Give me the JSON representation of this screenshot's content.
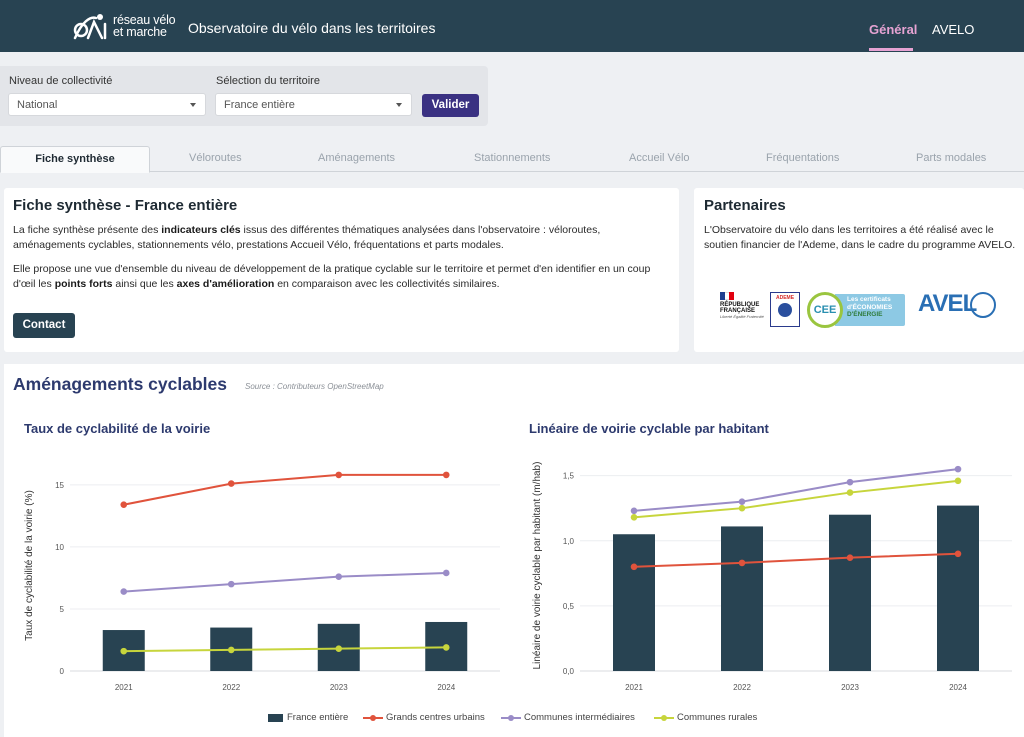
{
  "header": {
    "logo_line1": "réseau vélo",
    "logo_line2": "et marche",
    "app_title": "Observatoire du vélo dans les territoires",
    "nav": [
      "Général",
      "AVELO"
    ]
  },
  "filters": {
    "level_label": "Niveau de collectivité",
    "level_value": "National",
    "territory_label": "Sélection du territoire",
    "territory_value": "France entière",
    "submit_label": "Valider"
  },
  "tabs": [
    "Fiche synthèse",
    "Véloroutes",
    "Aménagements",
    "Stationnements",
    "Accueil Vélo",
    "Fréquentations",
    "Parts modales"
  ],
  "summary": {
    "title": "Fiche synthèse - France entière",
    "p1_a": "La fiche synthèse présente des ",
    "p1_b": "indicateurs clés",
    "p1_c": " issus des différentes thématiques analysées dans l'observatoire : véloroutes, aménagements cyclables, stationnements vélo, prestations Accueil Vélo, fréquentations et parts modales.",
    "p2_a": "Elle propose une vue d'ensemble du niveau de développement de la pratique cyclable sur le territoire et permet d'en identifier en un coup d'œil les ",
    "p2_b": "points forts",
    "p2_c": " ainsi que les ",
    "p2_d": "axes d'amélioration",
    "p2_e": " en comparaison avec les collectivités similaires.",
    "contact_label": "Contact"
  },
  "partners": {
    "title": "Partenaires",
    "text": "L'Observatoire du vélo dans les territoires a été réalisé avec le soutien financier de l'Ademe, dans le cadre du programme AVELO.",
    "rf_line1": "RÉPUBLIQUE",
    "rf_line2": "FRANÇAISE",
    "rf_motto": "Liberté Égalité Fraternité",
    "ademe": "ADEME",
    "cee_circle": "CEE",
    "cee_line1": "Les certificats",
    "cee_line2": "d'ÉCONOMIES",
    "cee_line3": "D'ÉNERGIE",
    "avelo": "AVEL"
  },
  "section": {
    "title": "Aménagements cyclables",
    "source": "Source : Contributeurs OpenStreetMap"
  },
  "colors": {
    "bar": "#284352",
    "urbains": "#e0533c",
    "intermediaires": "#9a8cc7",
    "rurales": "#c7d53c"
  },
  "legend": [
    "France entière",
    "Grands centres urbains",
    "Communes intermédiaires",
    "Communes rurales"
  ],
  "chart_data": [
    {
      "type": "bar",
      "title": "Taux de cyclabilité de la voirie",
      "xlabel": "",
      "ylabel": "Taux de cyclabilité de la voirie (%)",
      "categories": [
        "2021",
        "2022",
        "2023",
        "2024"
      ],
      "ylim": [
        0,
        17
      ],
      "yticks": [
        0,
        5,
        10,
        15
      ],
      "ytick_labels": [
        "0",
        "5",
        "10",
        "15"
      ],
      "series": [
        {
          "name": "France entière",
          "kind": "bar",
          "values": [
            3.3,
            3.5,
            3.8,
            3.95
          ]
        },
        {
          "name": "Grands centres urbains",
          "kind": "line",
          "values": [
            13.4,
            15.1,
            15.8,
            15.8
          ]
        },
        {
          "name": "Communes intermédiaires",
          "kind": "line",
          "values": [
            6.4,
            7.0,
            7.6,
            7.9
          ]
        },
        {
          "name": "Communes rurales",
          "kind": "line",
          "values": [
            1.6,
            1.7,
            1.8,
            1.9
          ]
        }
      ]
    },
    {
      "type": "bar",
      "title": "Linéaire de voirie cyclable par habitant",
      "xlabel": "",
      "ylabel": "Linéaire de voirie cyclable par habitant (m/hab)",
      "categories": [
        "2021",
        "2022",
        "2023",
        "2024"
      ],
      "ylim": [
        0,
        1.62
      ],
      "yticks": [
        0,
        0.5,
        1.0,
        1.5
      ],
      "ytick_labels": [
        "0,0",
        "0,5",
        "1,0",
        "1,5"
      ],
      "series": [
        {
          "name": "France entière",
          "kind": "bar",
          "values": [
            1.05,
            1.11,
            1.2,
            1.27
          ]
        },
        {
          "name": "Grands centres urbains",
          "kind": "line",
          "values": [
            0.8,
            0.83,
            0.87,
            0.9
          ]
        },
        {
          "name": "Communes intermédiaires",
          "kind": "line",
          "values": [
            1.23,
            1.3,
            1.45,
            1.55
          ]
        },
        {
          "name": "Communes rurales",
          "kind": "line",
          "values": [
            1.18,
            1.25,
            1.37,
            1.46
          ]
        }
      ]
    }
  ]
}
